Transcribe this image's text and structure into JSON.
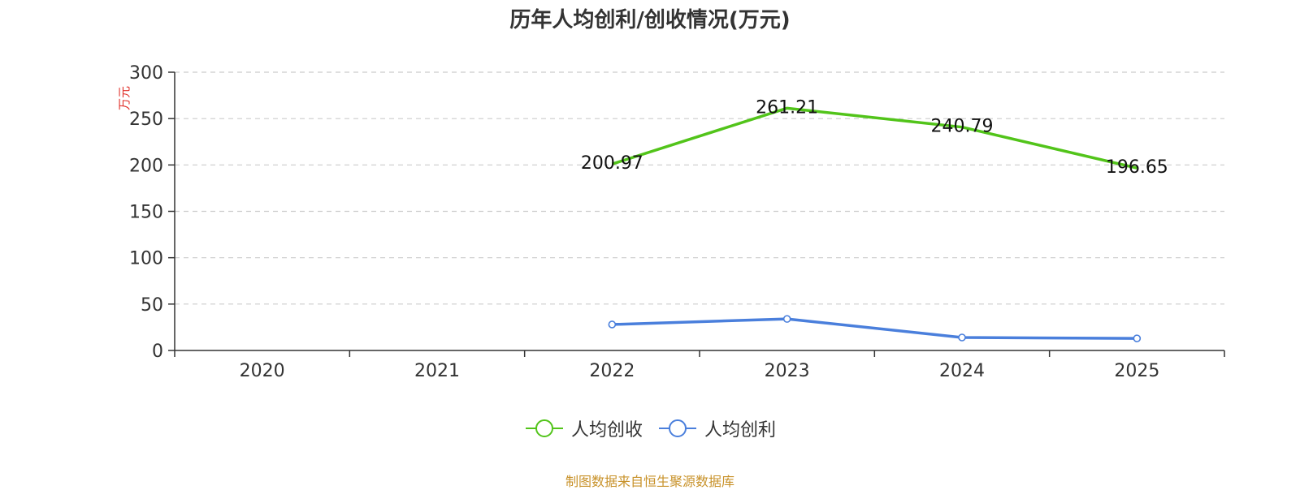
{
  "chart_data": {
    "type": "line",
    "title": "历年人均创利/创收情况(万元)",
    "ylabel": "万元",
    "xlabel": "",
    "ylim": [
      0,
      300
    ],
    "yticks": [
      0,
      50,
      100,
      150,
      200,
      250,
      300
    ],
    "categories": [
      "2020",
      "2021",
      "2022",
      "2023",
      "2024",
      "2025"
    ],
    "grid": true,
    "legend_position": "bottom",
    "series": [
      {
        "name": "人均创收",
        "color": "#52c41a",
        "values": [
          null,
          null,
          200.97,
          261.21,
          240.79,
          196.65
        ],
        "data_labels": [
          "",
          "",
          "200.97",
          "261.21",
          "240.79",
          "196.65"
        ],
        "markers": false
      },
      {
        "name": "人均创利",
        "color": "#4a7fdc",
        "values": [
          null,
          null,
          28,
          34,
          14,
          13
        ],
        "data_labels": [
          "",
          "",
          "",
          "",
          "",
          ""
        ],
        "markers": true
      }
    ]
  },
  "source_note": "制图数据来自恒生聚源数据库"
}
